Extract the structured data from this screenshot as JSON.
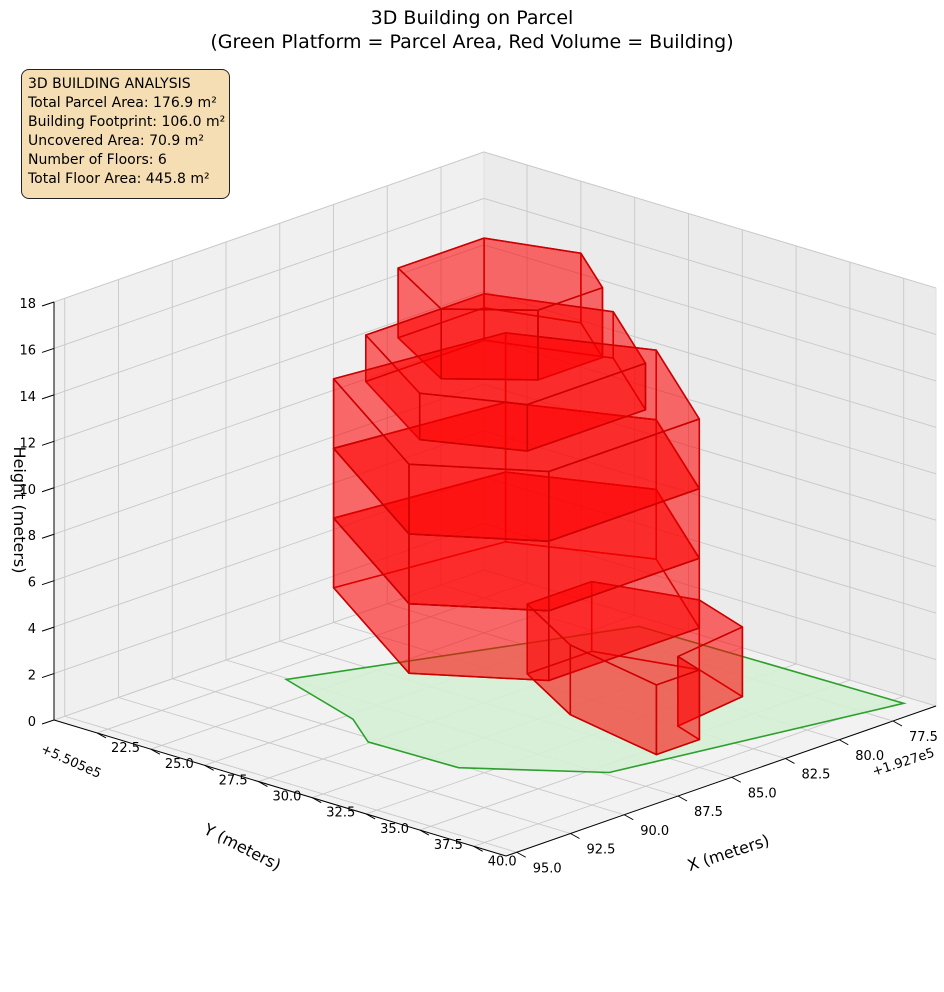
{
  "title_line1": "3D Building on Parcel",
  "title_line2": "(Green Platform = Parcel Area, Red Volume = Building)",
  "info": {
    "heading": "3D BUILDING ANALYSIS",
    "parcel_area": "Total Parcel Area: 176.9 m²",
    "footprint": "Building Footprint: 106.0 m²",
    "uncovered": "Uncovered Area: 70.9 m²",
    "floors": "Number of Floors: 6",
    "floor_area": "Total Floor Area: 445.8 m²"
  },
  "colors": {
    "parcel_fill": "#d4f0d4",
    "parcel_edge": "#2ca02c",
    "building_fill": "#ff0000",
    "building_edge": "#cc0000",
    "info_bg": "#f5deb3"
  },
  "chart_data": {
    "type": "3d-polygons",
    "title": "3D Building on Parcel\n(Green Platform = Parcel Area, Red Volume = Building)",
    "xlabel": "X (meters)",
    "ylabel": "Y (meters)",
    "zlabel": "Height (meters)",
    "x_offset_label": "+1.927e5",
    "y_offset_label": "+5.505e5",
    "x_ticks": [
      "22.5",
      "25.0",
      "27.5",
      "30.0",
      "32.5",
      "35.0",
      "37.5",
      "40.0"
    ],
    "y_ticks": [
      "77.5",
      "80.0",
      "82.5",
      "85.0",
      "87.5",
      "90.0",
      "92.5",
      "95.0"
    ],
    "z_ticks": [
      "0",
      "2",
      "4",
      "6",
      "8",
      "10",
      "12",
      "14",
      "16",
      "18"
    ],
    "xlim": [
      20.5,
      41.5
    ],
    "ylim": [
      75.5,
      95.5
    ],
    "zlim": [
      0,
      18
    ],
    "view": {
      "elev": 30,
      "azim": 45
    },
    "parcel": {
      "name": "Parcel Area",
      "polygon": [
        [
          28.4,
          76.2
        ],
        [
          23.4,
          87.6
        ],
        [
          27.9,
          89.0
        ],
        [
          29.9,
          90.3
        ],
        [
          34.0,
          90.2
        ],
        [
          38.1,
          87.3
        ],
        [
          40.5,
          76.0
        ]
      ]
    },
    "building": {
      "name": "Building",
      "floors": 6,
      "levels": [
        {
          "z": [
            0,
            3
          ],
          "footprint": [
            [
              33.0,
              78.0
            ],
            [
              29.0,
              79.0
            ],
            [
              29.0,
              82.0
            ],
            [
              33.0,
              84.0
            ],
            [
              38.0,
              85.0
            ],
            [
              38.0,
              83.0
            ],
            [
              36.5,
              82.5
            ],
            [
              36.0,
              79.0
            ]
          ]
        },
        {
          "z": [
            3,
            6
          ],
          "footprint": [
            [
              24.0,
              78.0
            ],
            [
              23.0,
              85.0
            ],
            [
              31.0,
              89.5
            ],
            [
              35.0,
              87.0
            ],
            [
              35.0,
              80.0
            ],
            [
              29.0,
              76.0
            ]
          ]
        },
        {
          "z": [
            6,
            9
          ],
          "footprint": [
            [
              24.0,
              78.0
            ],
            [
              23.0,
              85.0
            ],
            [
              31.0,
              89.5
            ],
            [
              35.0,
              87.0
            ],
            [
              35.0,
              80.0
            ],
            [
              29.0,
              76.0
            ]
          ]
        },
        {
          "z": [
            9,
            12
          ],
          "footprint": [
            [
              24.0,
              78.0
            ],
            [
              23.0,
              85.0
            ],
            [
              31.0,
              89.5
            ],
            [
              35.0,
              87.0
            ],
            [
              35.0,
              80.0
            ],
            [
              29.0,
              76.0
            ]
          ]
        },
        {
          "z": [
            12,
            14
          ],
          "footprint": [
            [
              24.0,
              79.0
            ],
            [
              24.0,
              84.5
            ],
            [
              29.5,
              87.5
            ],
            [
              33.0,
              86.0
            ],
            [
              33.0,
              80.5
            ],
            [
              28.5,
              77.5
            ]
          ]
        },
        {
          "z": [
            14,
            17
          ],
          "footprint": [
            [
              25.0,
              80.0
            ],
            [
              25.0,
              84.0
            ],
            [
              29.0,
              86.0
            ],
            [
              31.5,
              84.0
            ],
            [
              31.5,
              81.0
            ],
            [
              28.5,
              79.0
            ]
          ]
        }
      ]
    }
  }
}
